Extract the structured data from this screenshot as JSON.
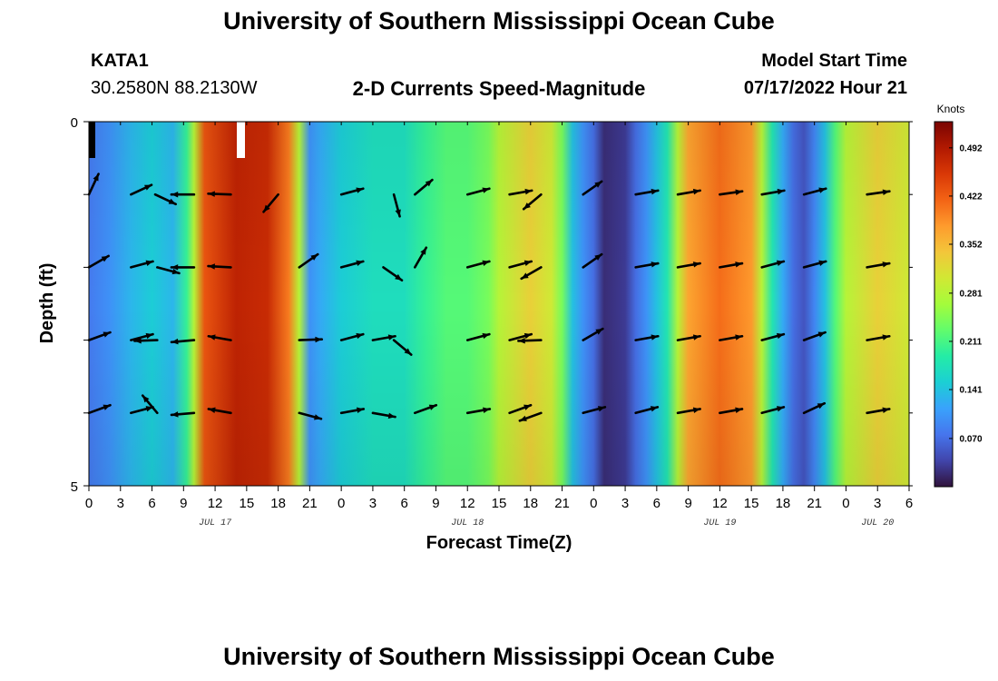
{
  "header": {
    "title": "University of Southern Mississippi Ocean Cube",
    "station": "KATA1",
    "coords": "30.2580N  88.2130W",
    "chart_title": "2-D Currents Speed-Magnitude",
    "model_label": "Model Start Time",
    "model_time": "07/17/2022 Hour 21"
  },
  "footer": {
    "title": "University of Southern Mississippi Ocean Cube"
  },
  "chart_data": {
    "type": "heatmap",
    "title": "2-D Currents Speed-Magnitude",
    "xlabel": "Forecast Time(Z)",
    "ylabel": "Depth (ft)",
    "x_ticks": [
      "0",
      "3",
      "6",
      "9",
      "12",
      "15",
      "18",
      "21",
      "0",
      "3",
      "6",
      "9",
      "12",
      "15",
      "18",
      "21",
      "0",
      "3",
      "6",
      "9",
      "12",
      "15",
      "18",
      "21",
      "0",
      "3",
      "6"
    ],
    "x_range_hours": [
      0,
      78
    ],
    "date_labels": [
      {
        "hour": 12,
        "text": "JUL 17"
      },
      {
        "hour": 36,
        "text": "JUL 18"
      },
      {
        "hour": 60,
        "text": "JUL 19"
      },
      {
        "hour": 75,
        "text": "JUL 20"
      }
    ],
    "y_ticks": [
      "0",
      "5"
    ],
    "ylim": [
      0,
      5
    ],
    "colorbar": {
      "unit": "Knots",
      "min": 0.0,
      "max": 0.53,
      "tick_labels": [
        "0.492",
        "0.422",
        "0.352",
        "0.281",
        "0.211",
        "0.141",
        "0.070"
      ],
      "tick_values": [
        0.492,
        0.422,
        0.352,
        0.281,
        0.211,
        0.141,
        0.07
      ],
      "colors": [
        "#30123b",
        "#4145ab",
        "#4675ed",
        "#39a2fc",
        "#1bcfd4",
        "#24eca6",
        "#61fc6c",
        "#a4fc3b",
        "#d1e834",
        "#f3c63a",
        "#fe9b2d",
        "#f36315",
        "#d93806",
        "#b11901",
        "#7a0402"
      ]
    },
    "speed_profile": [
      {
        "hour": 0,
        "speed": 0.08
      },
      {
        "hour": 2,
        "speed": 0.1
      },
      {
        "hour": 4,
        "speed": 0.13
      },
      {
        "hour": 6,
        "speed": 0.15
      },
      {
        "hour": 8,
        "speed": 0.13
      },
      {
        "hour": 9.3,
        "speed": 0.2
      },
      {
        "hour": 10,
        "speed": 0.28
      },
      {
        "hour": 11,
        "speed": 0.43
      },
      {
        "hour": 14,
        "speed": 0.48
      },
      {
        "hour": 17,
        "speed": 0.47
      },
      {
        "hour": 19,
        "speed": 0.4
      },
      {
        "hour": 20,
        "speed": 0.28
      },
      {
        "hour": 21,
        "speed": 0.1
      },
      {
        "hour": 22,
        "speed": 0.12
      },
      {
        "hour": 24,
        "speed": 0.15
      },
      {
        "hour": 27,
        "speed": 0.17
      },
      {
        "hour": 30,
        "speed": 0.17
      },
      {
        "hour": 32,
        "speed": 0.2
      },
      {
        "hour": 34,
        "speed": 0.22
      },
      {
        "hour": 36,
        "speed": 0.22
      },
      {
        "hour": 38,
        "speed": 0.24
      },
      {
        "hour": 39,
        "speed": 0.28
      },
      {
        "hour": 42,
        "speed": 0.33
      },
      {
        "hour": 44,
        "speed": 0.3
      },
      {
        "hour": 45,
        "speed": 0.24
      },
      {
        "hour": 46,
        "speed": 0.14
      },
      {
        "hour": 47,
        "speed": 0.1
      },
      {
        "hour": 48,
        "speed": 0.07
      },
      {
        "hour": 49,
        "speed": 0.02
      },
      {
        "hour": 51,
        "speed": 0.03
      },
      {
        "hour": 52,
        "speed": 0.07
      },
      {
        "hour": 53,
        "speed": 0.1
      },
      {
        "hour": 54,
        "speed": 0.14
      },
      {
        "hour": 55,
        "speed": 0.18
      },
      {
        "hour": 56,
        "speed": 0.28
      },
      {
        "hour": 57,
        "speed": 0.37
      },
      {
        "hour": 60,
        "speed": 0.41
      },
      {
        "hour": 63,
        "speed": 0.38
      },
      {
        "hour": 64,
        "speed": 0.28
      },
      {
        "hour": 65,
        "speed": 0.18
      },
      {
        "hour": 66,
        "speed": 0.12
      },
      {
        "hour": 67,
        "speed": 0.07
      },
      {
        "hour": 68,
        "speed": 0.05
      },
      {
        "hour": 69,
        "speed": 0.09
      },
      {
        "hour": 70,
        "speed": 0.14
      },
      {
        "hour": 71,
        "speed": 0.22
      },
      {
        "hour": 72,
        "speed": 0.28
      },
      {
        "hour": 75,
        "speed": 0.33
      },
      {
        "hour": 78,
        "speed": 0.3
      }
    ],
    "vector_depth_rows": [
      0,
      1,
      2,
      3,
      4,
      5
    ],
    "vectors": [
      {
        "hour": 0,
        "depth": 1,
        "angle_deg": 65
      },
      {
        "hour": 4,
        "depth": 1,
        "angle_deg": 25
      },
      {
        "hour": 6.3,
        "depth": 1,
        "angle_deg": -25
      },
      {
        "hour": 10,
        "depth": 1,
        "angle_deg": 180
      },
      {
        "hour": 13.5,
        "depth": 1,
        "angle_deg": 178
      },
      {
        "hour": 18,
        "depth": 1,
        "angle_deg": 230
      },
      {
        "hour": 24,
        "depth": 1,
        "angle_deg": 15
      },
      {
        "hour": 29,
        "depth": 1,
        "angle_deg": 285
      },
      {
        "hour": 31,
        "depth": 1,
        "angle_deg": 40
      },
      {
        "hour": 36,
        "depth": 1,
        "angle_deg": 15
      },
      {
        "hour": 40,
        "depth": 1,
        "angle_deg": 10
      },
      {
        "hour": 43,
        "depth": 1,
        "angle_deg": 220
      },
      {
        "hour": 47,
        "depth": 1,
        "angle_deg": 35
      },
      {
        "hour": 52,
        "depth": 1,
        "angle_deg": 10
      },
      {
        "hour": 56,
        "depth": 1,
        "angle_deg": 10
      },
      {
        "hour": 60,
        "depth": 1,
        "angle_deg": 8
      },
      {
        "hour": 64,
        "depth": 1,
        "angle_deg": 10
      },
      {
        "hour": 68,
        "depth": 1,
        "angle_deg": 15
      },
      {
        "hour": 74,
        "depth": 1,
        "angle_deg": 8
      },
      {
        "hour": 0,
        "depth": 2,
        "angle_deg": 30
      },
      {
        "hour": 4,
        "depth": 2,
        "angle_deg": 15
      },
      {
        "hour": 6.5,
        "depth": 2,
        "angle_deg": -15
      },
      {
        "hour": 10,
        "depth": 2,
        "angle_deg": 180
      },
      {
        "hour": 13.5,
        "depth": 2,
        "angle_deg": 177
      },
      {
        "hour": 20,
        "depth": 2,
        "angle_deg": 35
      },
      {
        "hour": 24,
        "depth": 2,
        "angle_deg": 15
      },
      {
        "hour": 28,
        "depth": 2,
        "angle_deg": -35
      },
      {
        "hour": 31,
        "depth": 2,
        "angle_deg": 60
      },
      {
        "hour": 36,
        "depth": 2,
        "angle_deg": 15
      },
      {
        "hour": 40,
        "depth": 2,
        "angle_deg": 15
      },
      {
        "hour": 43,
        "depth": 2,
        "angle_deg": 210
      },
      {
        "hour": 47,
        "depth": 2,
        "angle_deg": 35
      },
      {
        "hour": 52,
        "depth": 2,
        "angle_deg": 10
      },
      {
        "hour": 56,
        "depth": 2,
        "angle_deg": 10
      },
      {
        "hour": 60,
        "depth": 2,
        "angle_deg": 10
      },
      {
        "hour": 64,
        "depth": 2,
        "angle_deg": 15
      },
      {
        "hour": 68,
        "depth": 2,
        "angle_deg": 15
      },
      {
        "hour": 74,
        "depth": 2,
        "angle_deg": 10
      },
      {
        "hour": 0,
        "depth": 3,
        "angle_deg": 20
      },
      {
        "hour": 4,
        "depth": 3,
        "angle_deg": 15
      },
      {
        "hour": 6.5,
        "depth": 3,
        "angle_deg": 182
      },
      {
        "hour": 10,
        "depth": 3,
        "angle_deg": 185
      },
      {
        "hour": 13.5,
        "depth": 3,
        "angle_deg": 170
      },
      {
        "hour": 20,
        "depth": 3,
        "angle_deg": 2
      },
      {
        "hour": 24,
        "depth": 3,
        "angle_deg": 15
      },
      {
        "hour": 27,
        "depth": 3,
        "angle_deg": 10
      },
      {
        "hour": 29,
        "depth": 3,
        "angle_deg": -40
      },
      {
        "hour": 36,
        "depth": 3,
        "angle_deg": 15
      },
      {
        "hour": 40,
        "depth": 3,
        "angle_deg": 15
      },
      {
        "hour": 43,
        "depth": 3,
        "angle_deg": 182
      },
      {
        "hour": 47,
        "depth": 3,
        "angle_deg": 30
      },
      {
        "hour": 52,
        "depth": 3,
        "angle_deg": 10
      },
      {
        "hour": 56,
        "depth": 3,
        "angle_deg": 10
      },
      {
        "hour": 60,
        "depth": 3,
        "angle_deg": 10
      },
      {
        "hour": 64,
        "depth": 3,
        "angle_deg": 15
      },
      {
        "hour": 68,
        "depth": 3,
        "angle_deg": 20
      },
      {
        "hour": 74,
        "depth": 3,
        "angle_deg": 10
      },
      {
        "hour": 0,
        "depth": 4,
        "angle_deg": 20
      },
      {
        "hour": 4,
        "depth": 4,
        "angle_deg": 15
      },
      {
        "hour": 6.5,
        "depth": 4,
        "angle_deg": 130
      },
      {
        "hour": 10,
        "depth": 4,
        "angle_deg": 185
      },
      {
        "hour": 13.5,
        "depth": 4,
        "angle_deg": 170
      },
      {
        "hour": 20,
        "depth": 4,
        "angle_deg": -15
      },
      {
        "hour": 24,
        "depth": 4,
        "angle_deg": 10
      },
      {
        "hour": 27,
        "depth": 4,
        "angle_deg": -10
      },
      {
        "hour": 31,
        "depth": 4,
        "angle_deg": 20
      },
      {
        "hour": 36,
        "depth": 4,
        "angle_deg": 10
      },
      {
        "hour": 40,
        "depth": 4,
        "angle_deg": 20
      },
      {
        "hour": 43,
        "depth": 4,
        "angle_deg": 200
      },
      {
        "hour": 47,
        "depth": 4,
        "angle_deg": 15
      },
      {
        "hour": 52,
        "depth": 4,
        "angle_deg": 15
      },
      {
        "hour": 56,
        "depth": 4,
        "angle_deg": 10
      },
      {
        "hour": 60,
        "depth": 4,
        "angle_deg": 10
      },
      {
        "hour": 64,
        "depth": 4,
        "angle_deg": 15
      },
      {
        "hour": 68,
        "depth": 4,
        "angle_deg": 25
      },
      {
        "hour": 74,
        "depth": 4,
        "angle_deg": 10
      }
    ]
  }
}
